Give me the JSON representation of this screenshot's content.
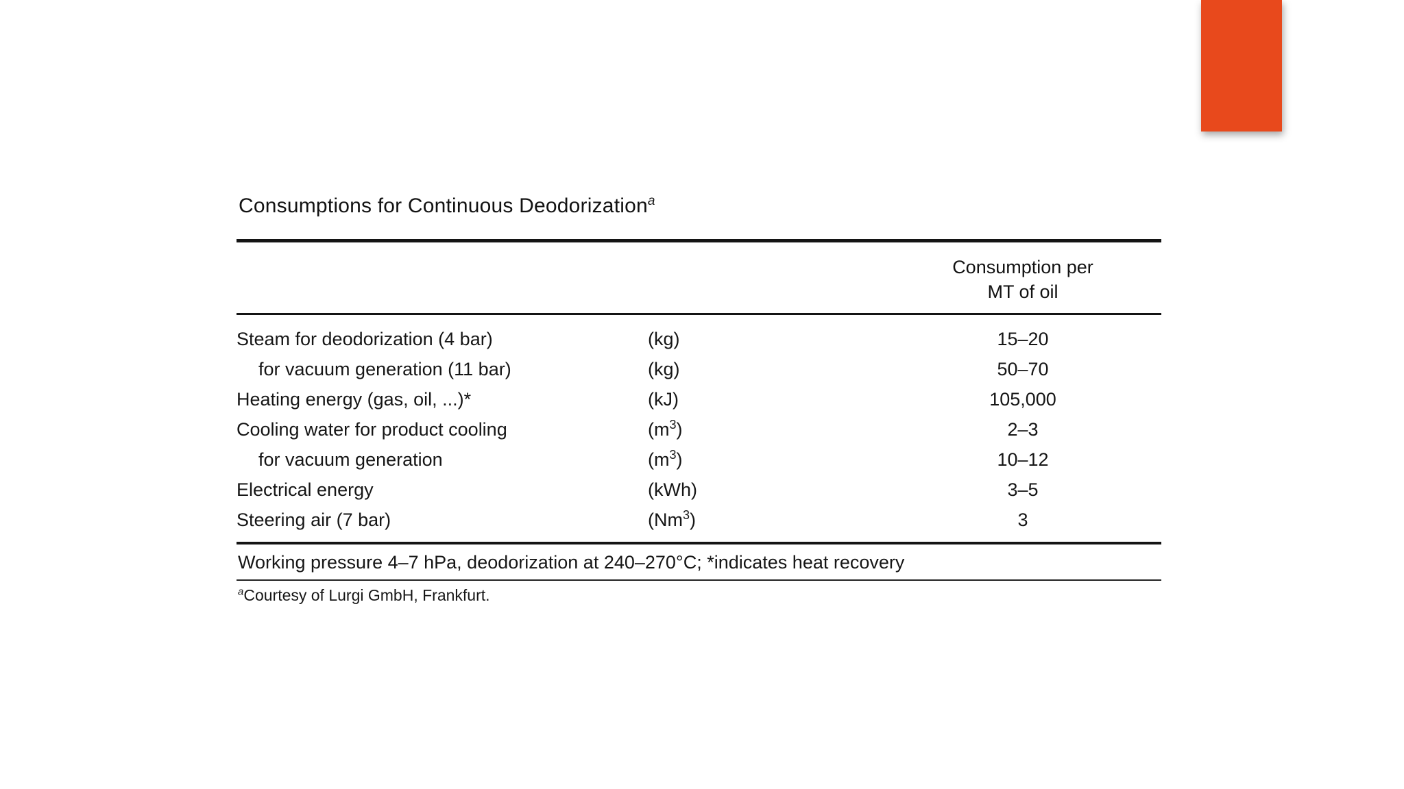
{
  "slide": {
    "background_color": "#ffffff",
    "accent_bar_color": "#e8491c"
  },
  "table": {
    "title": {
      "text": "Consumptions for Continuous Deodorization",
      "superscript": "a"
    },
    "header": {
      "line1": "Consumption per",
      "line2": "MT of oil"
    },
    "rows": [
      {
        "item": "Steam for deodorization (4 bar)",
        "unit_pre": "(kg)",
        "unit_sup": "",
        "unit_post": "",
        "value": "15–20"
      },
      {
        "item": "for vacuum generation (11 bar)",
        "unit_pre": "(kg)",
        "unit_sup": "",
        "unit_post": "",
        "value": "50–70"
      },
      {
        "item": "Heating energy (gas, oil, ...)*",
        "unit_pre": "(kJ)",
        "unit_sup": "",
        "unit_post": "",
        "value": "105,000"
      },
      {
        "item": "Cooling water for product cooling",
        "unit_pre": "(m",
        "unit_sup": "3",
        "unit_post": ")",
        "value": "2–3"
      },
      {
        "item": "for vacuum generation",
        "unit_pre": "(m",
        "unit_sup": "3",
        "unit_post": ")",
        "value": "10–12"
      },
      {
        "item": "Electrical energy",
        "unit_pre": "(kWh)",
        "unit_sup": "",
        "unit_post": "",
        "value": "3–5"
      },
      {
        "item": "Steering air (7 bar)",
        "unit_pre": "(Nm",
        "unit_sup": "3",
        "unit_post": ")",
        "value": "3"
      }
    ],
    "footnote_conditions": "Working pressure 4–7 hPa, deodorization at 240–270°C; *indicates heat recovery",
    "footnote_source_sup": "a",
    "footnote_source": "Courtesy of Lurgi GmbH, Frankfurt."
  }
}
